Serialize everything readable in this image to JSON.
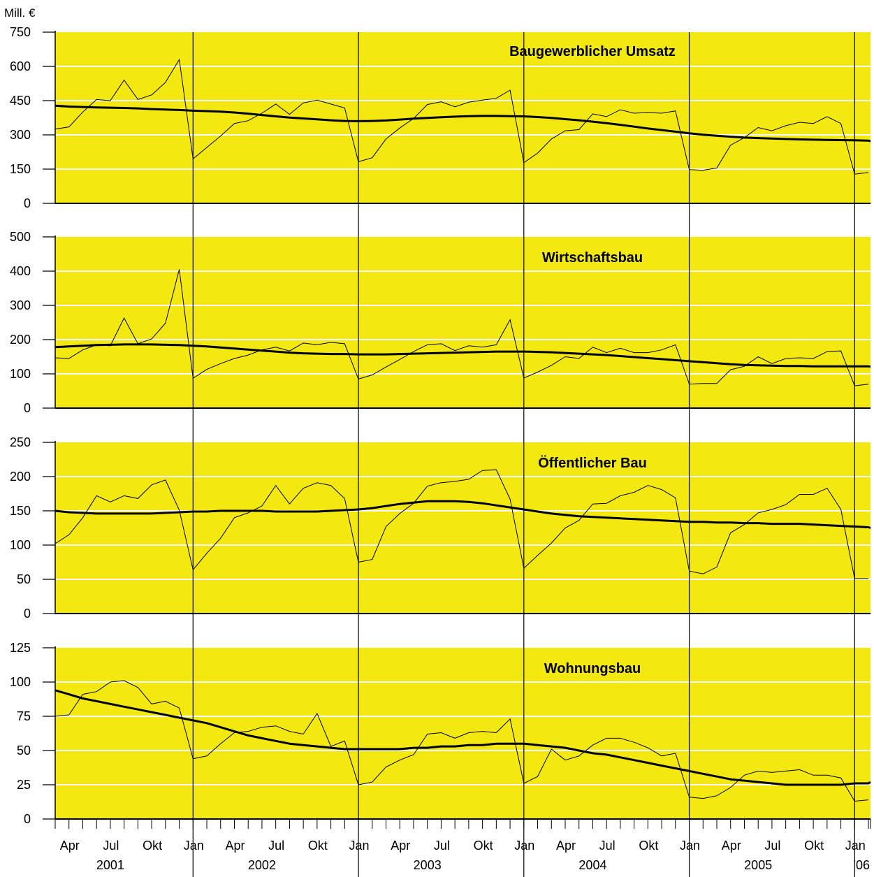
{
  "chart_data": {
    "type": "line",
    "unit_label": "Mill. €",
    "x_start": "2001-03",
    "x_end": "2006-02",
    "months": [
      "2001-03",
      "2001-04",
      "2001-05",
      "2001-06",
      "2001-07",
      "2001-08",
      "2001-09",
      "2001-10",
      "2001-11",
      "2001-12",
      "2002-01",
      "2002-02",
      "2002-03",
      "2002-04",
      "2002-05",
      "2002-06",
      "2002-07",
      "2002-08",
      "2002-09",
      "2002-10",
      "2002-11",
      "2002-12",
      "2003-01",
      "2003-02",
      "2003-03",
      "2003-04",
      "2003-05",
      "2003-06",
      "2003-07",
      "2003-08",
      "2003-09",
      "2003-10",
      "2003-11",
      "2003-12",
      "2004-01",
      "2004-02",
      "2004-03",
      "2004-04",
      "2004-05",
      "2004-06",
      "2004-07",
      "2004-08",
      "2004-09",
      "2004-10",
      "2004-11",
      "2004-12",
      "2005-01",
      "2005-02",
      "2005-03",
      "2005-04",
      "2005-05",
      "2005-06",
      "2005-07",
      "2005-08",
      "2005-09",
      "2005-10",
      "2005-11",
      "2005-12",
      "2006-01",
      "2006-02"
    ],
    "month_ticks": [
      {
        "label": "Apr",
        "month": "2001-04"
      },
      {
        "label": "Jul",
        "month": "2001-07"
      },
      {
        "label": "Okt",
        "month": "2001-10"
      },
      {
        "label": "Jan",
        "month": "2002-01"
      },
      {
        "label": "Apr",
        "month": "2002-04"
      },
      {
        "label": "Jul",
        "month": "2002-07"
      },
      {
        "label": "Okt",
        "month": "2002-10"
      },
      {
        "label": "Jan",
        "month": "2003-01"
      },
      {
        "label": "Apr",
        "month": "2003-04"
      },
      {
        "label": "Jul",
        "month": "2003-07"
      },
      {
        "label": "Okt",
        "month": "2003-10"
      },
      {
        "label": "Jan",
        "month": "2004-01"
      },
      {
        "label": "Apr",
        "month": "2004-04"
      },
      {
        "label": "Jul",
        "month": "2004-07"
      },
      {
        "label": "Okt",
        "month": "2004-10"
      },
      {
        "label": "Jan",
        "month": "2005-01"
      },
      {
        "label": "Apr",
        "month": "2005-04"
      },
      {
        "label": "Jul",
        "month": "2005-07"
      },
      {
        "label": "Okt",
        "month": "2005-10"
      },
      {
        "label": "Jan",
        "month": "2006-01"
      }
    ],
    "year_labels": [
      {
        "label": "2001",
        "month": "2001-07"
      },
      {
        "label": "2002",
        "month": "2002-06"
      },
      {
        "label": "2003",
        "month": "2003-06"
      },
      {
        "label": "2004",
        "month": "2004-06"
      },
      {
        "label": "2005",
        "month": "2005-06"
      },
      {
        "label": "'06",
        "month": "2006-01"
      }
    ],
    "year_boundaries": [
      "2002-01",
      "2003-01",
      "2004-01",
      "2005-01",
      "2006-01"
    ],
    "panels": [
      {
        "title": "Baugewerblicher Umsatz",
        "ylim": [
          0,
          750
        ],
        "yticks": [
          0,
          150,
          300,
          450,
          600,
          750
        ],
        "monthly": [
          325,
          335,
          400,
          455,
          450,
          540,
          455,
          475,
          530,
          630,
          195,
          245,
          295,
          350,
          362,
          395,
          435,
          390,
          440,
          452,
          435,
          418,
          182,
          200,
          282,
          330,
          372,
          433,
          445,
          423,
          443,
          452,
          460,
          496,
          178,
          220,
          282,
          318,
          323,
          392,
          380,
          410,
          395,
          398,
          395,
          405,
          148,
          145,
          155,
          255,
          288,
          332,
          318,
          340,
          355,
          350,
          380,
          350,
          128,
          135
        ],
        "trend": [
          428,
          424,
          422,
          420,
          419,
          418,
          416,
          413,
          411,
          409,
          406,
          404,
          402,
          398,
          393,
          387,
          381,
          376,
          372,
          368,
          364,
          361,
          360,
          361,
          363,
          367,
          371,
          374,
          377,
          380,
          382,
          383,
          383,
          382,
          381,
          378,
          374,
          369,
          364,
          358,
          351,
          344,
          336,
          328,
          321,
          314,
          307,
          301,
          296,
          292,
          288,
          286,
          284,
          282,
          280,
          279,
          278,
          277,
          276,
          275
        ],
        "trend_end": 272
      },
      {
        "title": "Wirtschaftsbau",
        "ylim": [
          0,
          500
        ],
        "yticks": [
          0,
          100,
          200,
          300,
          400,
          500
        ],
        "monthly": [
          147,
          145,
          170,
          185,
          182,
          263,
          188,
          202,
          248,
          405,
          87,
          113,
          130,
          145,
          155,
          170,
          178,
          167,
          190,
          185,
          192,
          188,
          85,
          97,
          120,
          142,
          165,
          185,
          188,
          168,
          182,
          178,
          185,
          258,
          88,
          105,
          125,
          150,
          145,
          178,
          162,
          175,
          162,
          162,
          170,
          185,
          70,
          72,
          72,
          112,
          122,
          150,
          130,
          145,
          147,
          145,
          165,
          167,
          65,
          70
        ],
        "trend": [
          178,
          180,
          182,
          184,
          185,
          186,
          186,
          186,
          185,
          184,
          182,
          180,
          177,
          174,
          171,
          168,
          165,
          162,
          160,
          159,
          158,
          158,
          157,
          157,
          157,
          158,
          159,
          160,
          161,
          162,
          163,
          164,
          165,
          165,
          165,
          164,
          163,
          161,
          159,
          157,
          155,
          152,
          149,
          146,
          143,
          140,
          137,
          134,
          131,
          128,
          126,
          125,
          124,
          123,
          123,
          122,
          122,
          122,
          122,
          122
        ],
        "trend_end": 121
      },
      {
        "title": "Öffentlicher Bau",
        "ylim": [
          0,
          250
        ],
        "yticks": [
          0,
          50,
          100,
          150,
          200,
          250
        ],
        "monthly": [
          102,
          115,
          140,
          172,
          163,
          172,
          168,
          188,
          195,
          151,
          64,
          88,
          110,
          140,
          147,
          157,
          187,
          160,
          183,
          191,
          187,
          168,
          75,
          79,
          127,
          146,
          161,
          186,
          191,
          193,
          196,
          209,
          210,
          167,
          66,
          85,
          103,
          125,
          136,
          160,
          161,
          172,
          177,
          187,
          181,
          169,
          62,
          58,
          68,
          118,
          130,
          147,
          152,
          159,
          174,
          174,
          183,
          152,
          51,
          51
        ],
        "trend": [
          150,
          148,
          147,
          146,
          146,
          146,
          146,
          146,
          147,
          148,
          149,
          149,
          150,
          150,
          150,
          150,
          149,
          149,
          149,
          149,
          150,
          151,
          152,
          154,
          157,
          160,
          162,
          164,
          164,
          164,
          163,
          161,
          158,
          155,
          152,
          149,
          146,
          144,
          142,
          141,
          140,
          139,
          138,
          137,
          136,
          135,
          134,
          134,
          133,
          133,
          132,
          132,
          131,
          131,
          131,
          130,
          129,
          128,
          127,
          126
        ],
        "trend_end": 125
      },
      {
        "title": "Wohnungsbau",
        "ylim": [
          0,
          125
        ],
        "yticks": [
          0,
          25,
          50,
          75,
          100,
          125
        ],
        "monthly": [
          75,
          76,
          91,
          93,
          100,
          101,
          96,
          84,
          86,
          81,
          44,
          46,
          55,
          63,
          64,
          67,
          68,
          64,
          62,
          77,
          53,
          57,
          25,
          27,
          38,
          43,
          47,
          62,
          63,
          59,
          63,
          64,
          63,
          73,
          26,
          31,
          51,
          43,
          46,
          54,
          59,
          59,
          56,
          52,
          46,
          48,
          16,
          15,
          17,
          23,
          32,
          35,
          34,
          35,
          36,
          32,
          32,
          30,
          13,
          14
        ],
        "trend": [
          94,
          91,
          88,
          86,
          84,
          82,
          80,
          78,
          76,
          74,
          72,
          70,
          67,
          64,
          61,
          59,
          57,
          55,
          54,
          53,
          52,
          51,
          51,
          51,
          51,
          51,
          52,
          52,
          53,
          53,
          54,
          54,
          55,
          55,
          55,
          54,
          53,
          52,
          50,
          48,
          47,
          45,
          43,
          41,
          39,
          37,
          35,
          33,
          31,
          29,
          28,
          27,
          26,
          25,
          25,
          25,
          25,
          25,
          26,
          26
        ],
        "trend_end": 27
      }
    ]
  }
}
